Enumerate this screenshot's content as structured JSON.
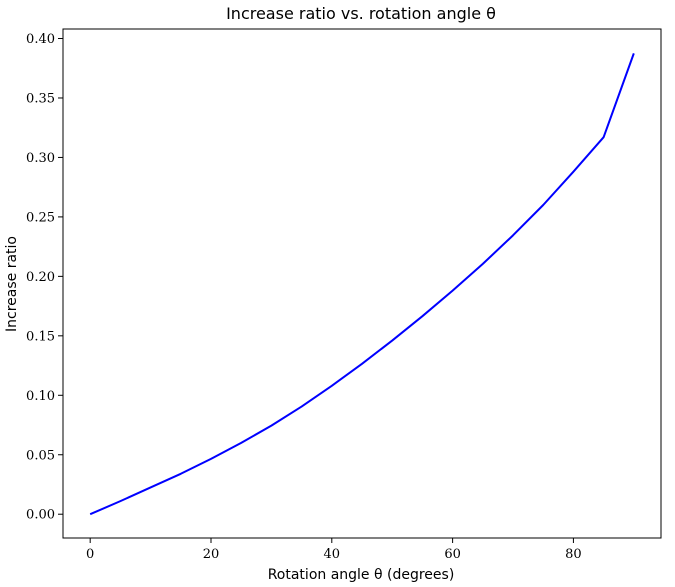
{
  "chart_data": {
    "type": "line",
    "title": "Increase ratio vs. rotation angle θ",
    "xlabel": "Rotation angle θ (degrees)",
    "ylabel": "Increase ratio",
    "xlim": [
      -4.5,
      94.5
    ],
    "ylim": [
      -0.02,
      0.408
    ],
    "xticks": [
      0,
      20,
      40,
      60,
      80
    ],
    "xtick_labels": [
      "0",
      "20",
      "40",
      "60",
      "80"
    ],
    "yticks": [
      0.0,
      0.05,
      0.1,
      0.15,
      0.2,
      0.25,
      0.3,
      0.35,
      0.4
    ],
    "ytick_labels": [
      "0.00",
      "0.05",
      "0.10",
      "0.15",
      "0.20",
      "0.25",
      "0.30",
      "0.35",
      "0.40"
    ],
    "grid": false,
    "series": [
      {
        "color": "#0000ff",
        "x": [
          0,
          5,
          10,
          15,
          20,
          25,
          30,
          35,
          40,
          45,
          50,
          55,
          60,
          65,
          70,
          75,
          80,
          85,
          90
        ],
        "y": [
          0.0,
          0.011,
          0.0225,
          0.034,
          0.0465,
          0.06,
          0.0745,
          0.0905,
          0.108,
          0.1265,
          0.146,
          0.1665,
          0.188,
          0.2105,
          0.2345,
          0.26,
          0.288,
          0.317,
          0.3875
        ]
      }
    ]
  }
}
